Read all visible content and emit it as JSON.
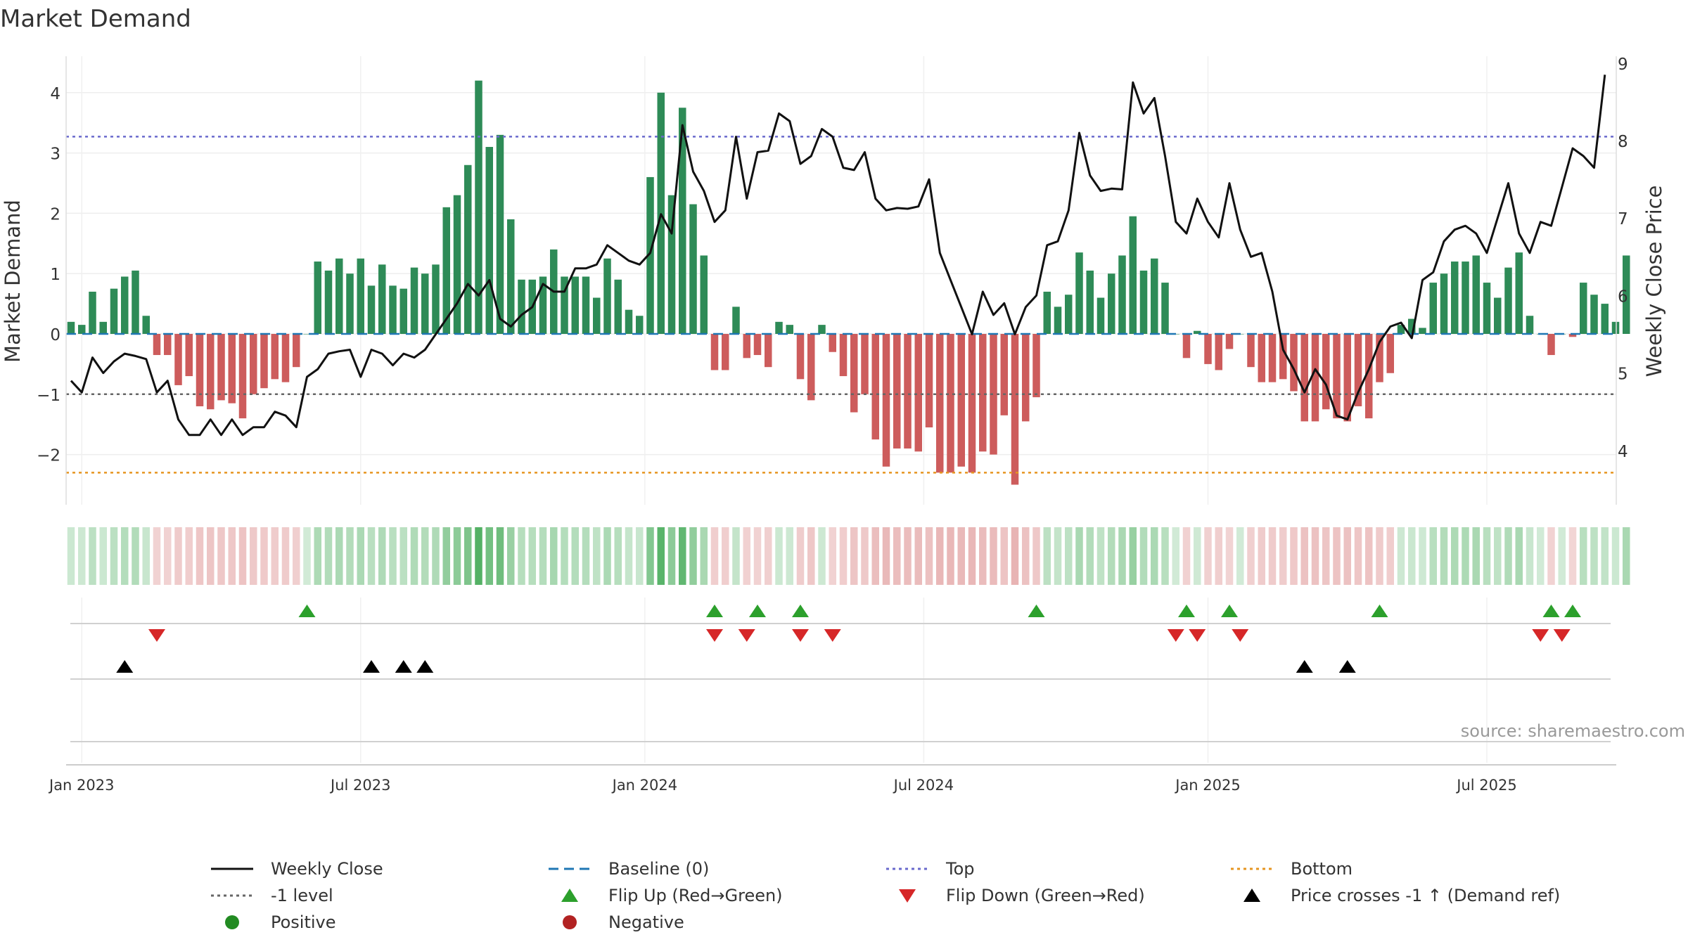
{
  "chart_data": {
    "type": "bar",
    "title": "Market Demand",
    "ylabel_left": "Market Demand",
    "ylabel_right": "Weekly Close Price",
    "source": "source: sharemaestro.com",
    "ylim_left": [
      -2.8,
      4.4
    ],
    "ylim_right": [
      3.35,
      9.0
    ],
    "yticks_left": [
      "4",
      "3",
      "2",
      "1",
      "0",
      "−1",
      "−2"
    ],
    "yticks_left_values": [
      4,
      3,
      2,
      1,
      0,
      -1,
      -2
    ],
    "yticks_right": [
      "9",
      "8",
      "7",
      "6",
      "5",
      "4"
    ],
    "yticks_right_values": [
      9,
      8,
      7,
      6,
      5,
      4
    ],
    "xtick_labels": [
      "Jan 2023",
      "Jul 2023",
      "Jan 2024",
      "Jul 2024",
      "Jan 2025",
      "Jul 2025"
    ],
    "xtick_weeks": [
      1,
      27,
      53.5,
      79.5,
      106,
      132
    ],
    "reference_lines": {
      "top": 3.27,
      "bottom": -2.3,
      "minus_one": -1,
      "baseline": 0
    },
    "colors": {
      "positive": "#2e8b57",
      "negative": "#cd5c5c",
      "close": "#111111",
      "top": "#6a6acd",
      "bottom": "#e69520",
      "minus_one": "#666666",
      "baseline": "#1f77b4",
      "flip_up": "#2ca02c",
      "flip_down": "#d62728",
      "cross": "#000000",
      "pos_dot": "#228b22",
      "neg_dot": "#b22222"
    },
    "demand": [
      0.2,
      0.15,
      0.7,
      0.2,
      0.75,
      0.95,
      1.05,
      0.3,
      -0.35,
      -0.35,
      -0.85,
      -0.7,
      -1.2,
      -1.25,
      -1.1,
      -1.15,
      -1.4,
      -1.0,
      -0.9,
      -0.75,
      -0.8,
      -0.55,
      0.0,
      1.2,
      1.05,
      1.25,
      1.0,
      1.25,
      0.8,
      1.15,
      0.8,
      0.75,
      1.1,
      1.0,
      1.15,
      2.1,
      2.3,
      2.8,
      4.2,
      3.1,
      3.3,
      1.9,
      0.9,
      0.9,
      0.95,
      1.4,
      0.95,
      0.95,
      0.95,
      0.6,
      1.25,
      0.9,
      0.4,
      0.3,
      2.6,
      4.0,
      2.3,
      3.75,
      2.15,
      1.3,
      -0.6,
      -0.6,
      0.45,
      -0.4,
      -0.35,
      -0.55,
      0.2,
      0.15,
      -0.75,
      -1.1,
      0.15,
      -0.3,
      -0.7,
      -1.3,
      -1.0,
      -1.75,
      -2.2,
      -1.9,
      -1.9,
      -1.95,
      -1.55,
      -2.3,
      -2.3,
      -2.2,
      -2.3,
      -1.95,
      -2.0,
      -1.35,
      -2.5,
      -1.45,
      -1.05,
      0.7,
      0.45,
      0.65,
      1.35,
      1.05,
      0.6,
      1.0,
      1.3,
      1.95,
      1.05,
      1.25,
      0.85,
      0.0,
      -0.4,
      0.05,
      -0.5,
      -0.6,
      -0.25,
      0.0,
      -0.55,
      -0.8,
      -0.8,
      -0.75,
      -0.95,
      -1.45,
      -1.45,
      -1.25,
      -1.4,
      -1.45,
      -1.2,
      -1.4,
      -0.8,
      -0.65,
      0.15,
      0.25,
      0.1,
      0.85,
      1.0,
      1.2,
      1.2,
      1.3,
      0.85,
      0.6,
      1.1,
      1.35,
      0.3,
      0.0,
      -0.35,
      0.0,
      -0.05,
      0.85,
      0.65,
      0.5,
      0.2,
      1.3
    ],
    "close": [
      4.9,
      4.75,
      5.2,
      5.0,
      5.15,
      5.25,
      5.22,
      5.18,
      4.75,
      4.9,
      4.4,
      4.2,
      4.2,
      4.4,
      4.2,
      4.4,
      4.2,
      4.3,
      4.3,
      4.5,
      4.45,
      4.3,
      4.95,
      5.05,
      5.25,
      5.28,
      5.3,
      4.95,
      5.3,
      5.25,
      5.1,
      5.25,
      5.2,
      5.3,
      5.5,
      5.7,
      5.9,
      6.15,
      6.0,
      6.2,
      5.7,
      5.6,
      5.75,
      5.85,
      6.15,
      6.05,
      6.05,
      6.35,
      6.35,
      6.4,
      6.65,
      6.55,
      6.45,
      6.4,
      6.55,
      7.05,
      6.8,
      8.2,
      7.6,
      7.35,
      6.95,
      7.1,
      8.05,
      7.25,
      7.85,
      7.87,
      8.35,
      8.25,
      7.7,
      7.8,
      8.15,
      8.05,
      7.65,
      7.62,
      7.85,
      7.25,
      7.1,
      7.13,
      7.12,
      7.15,
      7.5,
      6.55,
      6.2,
      5.85,
      5.5,
      6.05,
      5.75,
      5.9,
      5.5,
      5.85,
      6.0,
      6.65,
      6.7,
      7.1,
      8.1,
      7.55,
      7.35,
      7.38,
      7.37,
      8.75,
      8.35,
      8.55,
      7.8,
      6.95,
      6.8,
      7.25,
      6.95,
      6.75,
      7.45,
      6.85,
      6.5,
      6.55,
      6.05,
      5.3,
      5.05,
      4.75,
      5.05,
      4.85,
      4.45,
      4.4,
      4.75,
      5.05,
      5.4,
      5.6,
      5.65,
      5.45,
      6.2,
      6.3,
      6.7,
      6.85,
      6.9,
      6.8,
      6.55,
      7.0,
      7.45,
      6.8,
      6.55,
      6.95,
      6.9,
      7.4,
      7.9,
      7.8,
      7.65,
      8.85
    ],
    "flip_up_weeks": [
      22,
      60,
      64,
      68,
      90,
      104,
      108,
      122,
      138,
      140
    ],
    "flip_down_weeks": [
      8,
      60,
      63,
      68,
      71,
      103,
      105,
      109,
      137,
      139
    ],
    "price_cross_weeks": [
      5,
      28,
      31,
      33,
      115,
      119
    ]
  },
  "legend": [
    {
      "label": "Weekly Close",
      "marker": "solid-line",
      "color": "#111111"
    },
    {
      "label": "Baseline (0)",
      "marker": "dash-line",
      "color": "#1f77b4"
    },
    {
      "label": "Top",
      "marker": "dot-line",
      "color": "#6a6acd"
    },
    {
      "label": "Bottom",
      "marker": "dot-line",
      "color": "#e69520"
    },
    {
      "label": "-1 level",
      "marker": "dot-line",
      "color": "#666666"
    },
    {
      "label": "Flip Up (Red→Green)",
      "marker": "triangle-up",
      "color": "#2ca02c"
    },
    {
      "label": "Flip Down (Green→Red)",
      "marker": "triangle-down",
      "color": "#d62728"
    },
    {
      "label": "Price crosses -1 ↑ (Demand ref)",
      "marker": "triangle-up",
      "color": "#000000"
    },
    {
      "label": "Positive",
      "marker": "dot",
      "color": "#228b22"
    },
    {
      "label": "Negative",
      "marker": "dot",
      "color": "#b22222"
    }
  ]
}
